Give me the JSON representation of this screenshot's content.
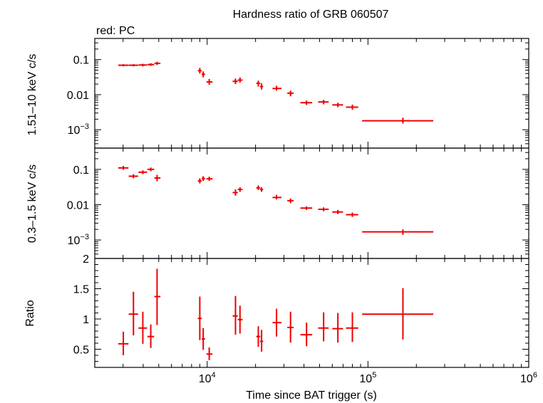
{
  "figure": {
    "title": "Hardness ratio of GRB 060507",
    "legend_note": "red: PC"
  },
  "chart_data": [
    {
      "type": "scatter",
      "panel": "hard",
      "ylabel": "1.51–10 keV c/s",
      "yscale": "log",
      "ylim": [
        0.0003,
        0.4
      ],
      "yticks": [
        {
          "value": 0.1,
          "label": "0.1"
        },
        {
          "value": 0.01,
          "label": "0.01"
        },
        {
          "value": 0.001,
          "label": "10",
          "exp": "−3"
        }
      ],
      "xscale": "log",
      "xlim": [
        2000,
        1000000
      ],
      "series": [
        {
          "color": "#ee0000",
          "points": [
            {
              "x": 3010,
              "xlo": 2800,
              "xhi": 3240,
              "y": 0.069,
              "ylo": 0.064,
              "yhi": 0.074
            },
            {
              "x": 3480,
              "xlo": 3250,
              "xhi": 3720,
              "y": 0.069,
              "ylo": 0.064,
              "yhi": 0.074
            },
            {
              "x": 3980,
              "xlo": 3740,
              "xhi": 4230,
              "y": 0.07,
              "ylo": 0.064,
              "yhi": 0.076
            },
            {
              "x": 4460,
              "xlo": 4250,
              "xhi": 4680,
              "y": 0.072,
              "ylo": 0.066,
              "yhi": 0.079
            },
            {
              "x": 4880,
              "xlo": 4700,
              "xhi": 5120,
              "y": 0.078,
              "ylo": 0.07,
              "yhi": 0.087
            },
            {
              "x": 9000,
              "xlo": 8750,
              "xhi": 9250,
              "y": 0.048,
              "ylo": 0.04,
              "yhi": 0.058
            },
            {
              "x": 9450,
              "xlo": 9250,
              "xhi": 9700,
              "y": 0.038,
              "ylo": 0.031,
              "yhi": 0.046
            },
            {
              "x": 10300,
              "xlo": 9900,
              "xhi": 10800,
              "y": 0.023,
              "ylo": 0.019,
              "yhi": 0.028
            },
            {
              "x": 15000,
              "xlo": 14400,
              "xhi": 15500,
              "y": 0.024,
              "ylo": 0.02,
              "yhi": 0.029
            },
            {
              "x": 16000,
              "xlo": 15500,
              "xhi": 16600,
              "y": 0.026,
              "ylo": 0.022,
              "yhi": 0.031
            },
            {
              "x": 20800,
              "xlo": 20200,
              "xhi": 21400,
              "y": 0.021,
              "ylo": 0.017,
              "yhi": 0.025
            },
            {
              "x": 21800,
              "xlo": 21300,
              "xhi": 22300,
              "y": 0.017,
              "ylo": 0.014,
              "yhi": 0.021
            },
            {
              "x": 27000,
              "xlo": 25500,
              "xhi": 29000,
              "y": 0.015,
              "ylo": 0.013,
              "yhi": 0.018
            },
            {
              "x": 33000,
              "xlo": 31500,
              "xhi": 34500,
              "y": 0.011,
              "ylo": 0.009,
              "yhi": 0.013
            },
            {
              "x": 41500,
              "xlo": 38000,
              "xhi": 45000,
              "y": 0.0059,
              "ylo": 0.0051,
              "yhi": 0.0068
            },
            {
              "x": 53000,
              "xlo": 49000,
              "xhi": 57000,
              "y": 0.0062,
              "ylo": 0.0053,
              "yhi": 0.0071
            },
            {
              "x": 65000,
              "xlo": 60000,
              "xhi": 70000,
              "y": 0.0051,
              "ylo": 0.0044,
              "yhi": 0.0059
            },
            {
              "x": 80000,
              "xlo": 73000,
              "xhi": 87000,
              "y": 0.0044,
              "ylo": 0.0037,
              "yhi": 0.0052
            },
            {
              "x": 165000,
              "xlo": 92000,
              "xhi": 255000,
              "y": 0.0018,
              "ylo": 0.0015,
              "yhi": 0.0022
            }
          ]
        }
      ]
    },
    {
      "type": "scatter",
      "panel": "soft",
      "ylabel": "0.3–1.5 keV c/s",
      "yscale": "log",
      "ylim": [
        0.0003,
        0.4
      ],
      "yticks": [
        {
          "value": 0.1,
          "label": "0.1"
        },
        {
          "value": 0.01,
          "label": "0.01"
        },
        {
          "value": 0.001,
          "label": "10",
          "exp": "−3"
        }
      ],
      "xscale": "log",
      "xlim": [
        2000,
        1000000
      ],
      "series": [
        {
          "color": "#ee0000",
          "points": [
            {
              "x": 3010,
              "xlo": 2800,
              "xhi": 3240,
              "y": 0.11,
              "ylo": 0.097,
              "yhi": 0.125
            },
            {
              "x": 3480,
              "xlo": 3250,
              "xhi": 3720,
              "y": 0.064,
              "ylo": 0.056,
              "yhi": 0.073
            },
            {
              "x": 3980,
              "xlo": 3740,
              "xhi": 4230,
              "y": 0.083,
              "ylo": 0.073,
              "yhi": 0.094
            },
            {
              "x": 4460,
              "xlo": 4250,
              "xhi": 4680,
              "y": 0.1,
              "ylo": 0.088,
              "yhi": 0.113
            },
            {
              "x": 4880,
              "xlo": 4700,
              "xhi": 5120,
              "y": 0.057,
              "ylo": 0.046,
              "yhi": 0.07
            },
            {
              "x": 9000,
              "xlo": 8750,
              "xhi": 9250,
              "y": 0.047,
              "ylo": 0.04,
              "yhi": 0.056
            },
            {
              "x": 9450,
              "xlo": 9250,
              "xhi": 9700,
              "y": 0.055,
              "ylo": 0.047,
              "yhi": 0.064
            },
            {
              "x": 10300,
              "xlo": 9900,
              "xhi": 10800,
              "y": 0.054,
              "ylo": 0.047,
              "yhi": 0.062
            },
            {
              "x": 15000,
              "xlo": 14400,
              "xhi": 15500,
              "y": 0.022,
              "ylo": 0.018,
              "yhi": 0.027
            },
            {
              "x": 16000,
              "xlo": 15500,
              "xhi": 16600,
              "y": 0.027,
              "ylo": 0.023,
              "yhi": 0.031
            },
            {
              "x": 20800,
              "xlo": 20200,
              "xhi": 21400,
              "y": 0.03,
              "ylo": 0.026,
              "yhi": 0.035
            },
            {
              "x": 21800,
              "xlo": 21300,
              "xhi": 22300,
              "y": 0.027,
              "ylo": 0.023,
              "yhi": 0.031
            },
            {
              "x": 27000,
              "xlo": 25500,
              "xhi": 29000,
              "y": 0.016,
              "ylo": 0.014,
              "yhi": 0.019
            },
            {
              "x": 33000,
              "xlo": 31500,
              "xhi": 34500,
              "y": 0.013,
              "ylo": 0.011,
              "yhi": 0.015
            },
            {
              "x": 41500,
              "xlo": 38000,
              "xhi": 45000,
              "y": 0.008,
              "ylo": 0.0071,
              "yhi": 0.009
            },
            {
              "x": 53000,
              "xlo": 49000,
              "xhi": 57000,
              "y": 0.0074,
              "ylo": 0.0065,
              "yhi": 0.0084
            },
            {
              "x": 65000,
              "xlo": 60000,
              "xhi": 70000,
              "y": 0.0062,
              "ylo": 0.0054,
              "yhi": 0.0071
            },
            {
              "x": 80000,
              "xlo": 73000,
              "xhi": 87000,
              "y": 0.0052,
              "ylo": 0.0045,
              "yhi": 0.006
            },
            {
              "x": 165000,
              "xlo": 92000,
              "xhi": 255000,
              "y": 0.0017,
              "ylo": 0.0014,
              "yhi": 0.002
            }
          ]
        }
      ]
    },
    {
      "type": "scatter",
      "panel": "ratio",
      "ylabel": "Ratio",
      "xlabel": "Time since BAT trigger (s)",
      "yscale": "linear",
      "ylim": [
        0.2,
        2
      ],
      "yticks": [
        {
          "value": 0.5,
          "label": "0.5"
        },
        {
          "value": 1,
          "label": "1"
        },
        {
          "value": 1.5,
          "label": "1.5"
        },
        {
          "value": 2,
          "label": "2"
        }
      ],
      "xscale": "log",
      "xlim": [
        2000,
        1000000
      ],
      "xticks": [
        {
          "value": 10000,
          "label": "10",
          "exp": "4"
        },
        {
          "value": 100000,
          "label": "10",
          "exp": "5"
        },
        {
          "value": 1000000,
          "label": "10",
          "exp": "6"
        }
      ],
      "series": [
        {
          "color": "#ee0000",
          "points": [
            {
              "x": 3010,
              "xlo": 2800,
              "xhi": 3240,
              "y": 0.59,
              "ylo": 0.4,
              "yhi": 0.79
            },
            {
              "x": 3480,
              "xlo": 3250,
              "xhi": 3720,
              "y": 1.08,
              "ylo": 0.73,
              "yhi": 1.45
            },
            {
              "x": 3980,
              "xlo": 3740,
              "xhi": 4230,
              "y": 0.85,
              "ylo": 0.59,
              "yhi": 1.12
            },
            {
              "x": 4460,
              "xlo": 4250,
              "xhi": 4680,
              "y": 0.71,
              "ylo": 0.52,
              "yhi": 0.91
            },
            {
              "x": 4880,
              "xlo": 4700,
              "xhi": 5120,
              "y": 1.37,
              "ylo": 0.9,
              "yhi": 1.83
            },
            {
              "x": 9000,
              "xlo": 8750,
              "xhi": 9250,
              "y": 1.01,
              "ylo": 0.65,
              "yhi": 1.37
            },
            {
              "x": 9450,
              "xlo": 9250,
              "xhi": 9700,
              "y": 0.67,
              "ylo": 0.49,
              "yhi": 0.85
            },
            {
              "x": 10300,
              "xlo": 9900,
              "xhi": 10800,
              "y": 0.42,
              "ylo": 0.32,
              "yhi": 0.53
            },
            {
              "x": 15000,
              "xlo": 14400,
              "xhi": 15500,
              "y": 1.05,
              "ylo": 0.74,
              "yhi": 1.38
            },
            {
              "x": 16000,
              "xlo": 15500,
              "xhi": 16600,
              "y": 0.99,
              "ylo": 0.76,
              "yhi": 1.22
            },
            {
              "x": 20800,
              "xlo": 20200,
              "xhi": 21400,
              "y": 0.71,
              "ylo": 0.54,
              "yhi": 0.88
            },
            {
              "x": 21800,
              "xlo": 21300,
              "xhi": 22300,
              "y": 0.63,
              "ylo": 0.46,
              "yhi": 0.82
            },
            {
              "x": 27000,
              "xlo": 25500,
              "xhi": 29000,
              "y": 0.94,
              "ylo": 0.71,
              "yhi": 1.17
            },
            {
              "x": 33000,
              "xlo": 31500,
              "xhi": 34500,
              "y": 0.86,
              "ylo": 0.61,
              "yhi": 1.12
            },
            {
              "x": 41500,
              "xlo": 38000,
              "xhi": 45000,
              "y": 0.74,
              "ylo": 0.55,
              "yhi": 0.94
            },
            {
              "x": 53000,
              "xlo": 49000,
              "xhi": 57000,
              "y": 0.85,
              "ylo": 0.63,
              "yhi": 1.11
            },
            {
              "x": 65000,
              "xlo": 60000,
              "xhi": 70000,
              "y": 0.84,
              "ylo": 0.61,
              "yhi": 1.1
            },
            {
              "x": 80000,
              "xlo": 73000,
              "xhi": 87000,
              "y": 0.85,
              "ylo": 0.62,
              "yhi": 1.11
            },
            {
              "x": 165000,
              "xlo": 92000,
              "xhi": 255000,
              "y": 1.08,
              "ylo": 0.66,
              "yhi": 1.51
            }
          ]
        }
      ]
    }
  ]
}
